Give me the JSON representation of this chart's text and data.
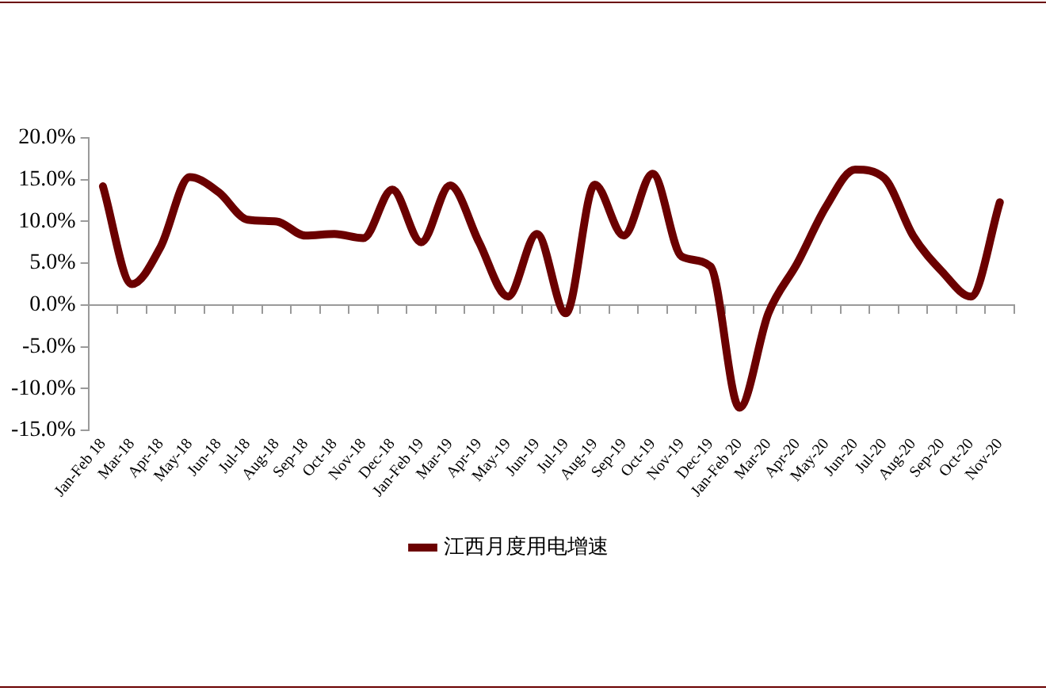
{
  "chart_data": {
    "type": "line",
    "categories": [
      "Jan-Feb 18",
      "Mar-18",
      "Apr-18",
      "May-18",
      "Jun-18",
      "Jul-18",
      "Aug-18",
      "Sep-18",
      "Oct-18",
      "Nov-18",
      "Dec-18",
      "Jan-Feb 19",
      "Mar-19",
      "Apr-19",
      "May-19",
      "Jun-19",
      "Jul-19",
      "Aug-19",
      "Sep-19",
      "Oct-19",
      "Nov-19",
      "Dec-19",
      "Jan-Feb 20",
      "Mar-20",
      "Apr-20",
      "May-20",
      "Jun-20",
      "Jul-20",
      "Aug-20",
      "Sep-20",
      "Oct-20",
      "Nov-20"
    ],
    "series": [
      {
        "name": "江西月度用电增速",
        "color": "#6b0000",
        "values": [
          14.2,
          2.5,
          7,
          15.3,
          13.5,
          10.2,
          10,
          8.3,
          8.5,
          8,
          13.8,
          7.5,
          14.3,
          7.5,
          1,
          8.5,
          -1,
          14.4,
          8.3,
          15.7,
          5.8,
          4.6,
          -12.3,
          -1,
          5,
          11.8,
          16.2,
          15.2,
          8.3,
          4,
          1,
          12.3
        ]
      }
    ],
    "ylim": [
      -15,
      20
    ],
    "yticks": [
      {
        "value": -15,
        "label": "-15.0%"
      },
      {
        "value": -10,
        "label": "-10.0%"
      },
      {
        "value": -5,
        "label": "-5.0%"
      },
      {
        "value": 0,
        "label": "0.0%"
      },
      {
        "value": 5,
        "label": "5.0%"
      },
      {
        "value": 10,
        "label": "10.0%"
      },
      {
        "value": 15,
        "label": "15.0%"
      },
      {
        "value": 20,
        "label": "20.0%"
      }
    ],
    "ref_lines": [
      {
        "axis": "y",
        "value": 0,
        "color": "#9a9a9a"
      }
    ],
    "grid": false,
    "legend": "bottom",
    "marker": "none",
    "line_style": "solid"
  }
}
